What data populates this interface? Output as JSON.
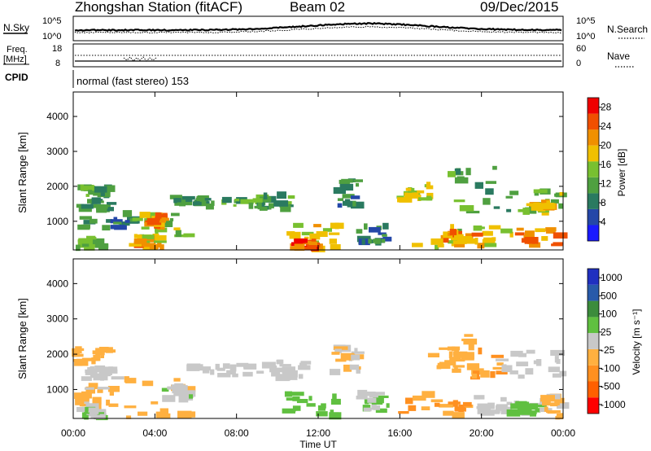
{
  "header": {
    "station": "Zhongshan Station (fitACF)",
    "beam": "Beam 02",
    "date": "09/Dec/2015"
  },
  "top_panels": {
    "nsky_label": "N.Sky",
    "nsky_tick_top": "10^5",
    "nsky_tick_bottom": "10^0",
    "nsearch_label": "N.Search",
    "nsearch_tick_top": "10^5",
    "nsearch_tick_bottom": "10^0",
    "freq_label_1": "Freq.",
    "freq_label_2": "[MHz]",
    "freq_ticks": [
      "18",
      "8"
    ],
    "nave_label": "Nave",
    "nave_ticks": [
      "60",
      "0"
    ],
    "cpid_label": "CPID",
    "cpid_text": "normal (fast stereo) 153"
  },
  "colors": {
    "power": [
      "#1a1aff",
      "#2447a8",
      "#2a7a60",
      "#4fa040",
      "#78c030",
      "#f0c000",
      "#f09000",
      "#f05000",
      "#f00000"
    ],
    "velocity": [
      "#ff0000",
      "#ff6000",
      "#ff9020",
      "#ffb040",
      "#c8c8c8",
      "#60c040",
      "#3c8c3c",
      "#285aaa",
      "#2030c0"
    ]
  },
  "chart_data": [
    {
      "type": "heatmap",
      "name": "power",
      "xlabel": "",
      "ylabel": "Slant Range [km]",
      "x_ticks": [
        "00:00",
        "04:00",
        "08:00",
        "12:00",
        "16:00",
        "20:00",
        "00:00"
      ],
      "y_ticks": [
        1000,
        2000,
        3000,
        4000
      ],
      "xlim_hours": [
        0,
        24
      ],
      "ylim_km": [
        180,
        4700
      ],
      "colorbar": {
        "label": "Power [dB]",
        "ticks": [
          "4",
          "8",
          "12",
          "16",
          "20",
          "24",
          "28"
        ],
        "range": [
          0,
          30
        ]
      },
      "echo_regions": [
        {
          "t0": 0.1,
          "t1": 2.2,
          "r0": 1300,
          "r1": 1600,
          "v": 10
        },
        {
          "t0": 0.1,
          "t1": 1.5,
          "r0": 200,
          "r1": 500,
          "v": 14
        },
        {
          "t0": 0.3,
          "t1": 1.8,
          "r0": 1700,
          "r1": 2000,
          "v": 12
        },
        {
          "t0": 0.5,
          "t1": 3.0,
          "r0": 800,
          "r1": 1100,
          "v": 8
        },
        {
          "t0": 2.5,
          "t1": 5.8,
          "r0": 500,
          "r1": 1300,
          "v": 14
        },
        {
          "t0": 3.0,
          "t1": 4.6,
          "r0": 200,
          "r1": 600,
          "v": 20
        },
        {
          "t0": 3.5,
          "t1": 4.5,
          "r0": 800,
          "r1": 1200,
          "v": 22
        },
        {
          "t0": 5.0,
          "t1": 6.5,
          "r0": 1500,
          "r1": 1700,
          "v": 10
        },
        {
          "t0": 6.5,
          "t1": 9.5,
          "r0": 1400,
          "r1": 1650,
          "v": 12
        },
        {
          "t0": 9.0,
          "t1": 10.8,
          "r0": 1300,
          "r1": 1800,
          "v": 11
        },
        {
          "t0": 10.5,
          "t1": 13.0,
          "r0": 200,
          "r1": 900,
          "v": 18
        },
        {
          "t0": 10.8,
          "t1": 12.0,
          "r0": 200,
          "r1": 450,
          "v": 24
        },
        {
          "t0": 13.0,
          "t1": 14.0,
          "r0": 1400,
          "r1": 2200,
          "v": 9
        },
        {
          "t0": 14.0,
          "t1": 15.5,
          "r0": 400,
          "r1": 900,
          "v": 8
        },
        {
          "t0": 16.0,
          "t1": 17.5,
          "r0": 1600,
          "r1": 2100,
          "v": 16
        },
        {
          "t0": 16.5,
          "t1": 21.5,
          "r0": 250,
          "r1": 900,
          "v": 16
        },
        {
          "t0": 18.0,
          "t1": 20.0,
          "r0": 300,
          "r1": 700,
          "v": 21
        },
        {
          "t0": 18.5,
          "t1": 21.5,
          "r0": 1200,
          "r1": 2600,
          "v": 11
        },
        {
          "t0": 21.5,
          "t1": 24.0,
          "r0": 1200,
          "r1": 1900,
          "v": 14
        },
        {
          "t0": 21.8,
          "t1": 24.0,
          "r0": 300,
          "r1": 800,
          "v": 22
        },
        {
          "t0": 22.5,
          "t1": 23.5,
          "r0": 1350,
          "r1": 1600,
          "v": 19
        }
      ]
    },
    {
      "type": "heatmap",
      "name": "velocity",
      "xlabel": "Time UT",
      "ylabel": "Slant Range [km]",
      "x_ticks": [
        "00:00",
        "04:00",
        "08:00",
        "12:00",
        "16:00",
        "20:00",
        "00:00"
      ],
      "y_ticks": [
        1000,
        2000,
        3000,
        4000
      ],
      "xlim_hours": [
        0,
        24
      ],
      "ylim_km": [
        180,
        4700
      ],
      "colorbar": {
        "label": "Velocity [m s⁻¹]",
        "ticks": [
          "1000",
          "500",
          "100",
          "25",
          "-25",
          "-100",
          "-500",
          "-1000"
        ],
        "range": [
          -1200,
          1200
        ]
      },
      "echo_regions": [
        {
          "t0": 0.1,
          "t1": 2.2,
          "r0": 1300,
          "r1": 1600,
          "v": 0
        },
        {
          "t0": 0.1,
          "t1": 1.8,
          "r0": 1700,
          "r1": 2200,
          "v": -300
        },
        {
          "t0": 0.3,
          "t1": 2.0,
          "r0": 500,
          "r1": 1200,
          "v": -200
        },
        {
          "t0": 0.1,
          "t1": 1.5,
          "r0": 200,
          "r1": 450,
          "v": 80
        },
        {
          "t0": 2.5,
          "t1": 5.8,
          "r0": 200,
          "r1": 1300,
          "v": -250
        },
        {
          "t0": 4.5,
          "t1": 5.8,
          "r0": 700,
          "r1": 1100,
          "v": 90
        },
        {
          "t0": 5.5,
          "t1": 9.5,
          "r0": 1400,
          "r1": 1700,
          "v": 0
        },
        {
          "t0": 9.0,
          "t1": 11.5,
          "r0": 1300,
          "r1": 1800,
          "v": 5
        },
        {
          "t0": 10.5,
          "t1": 13.0,
          "r0": 200,
          "r1": 900,
          "v": 300
        },
        {
          "t0": 12.8,
          "t1": 14.0,
          "r0": 1400,
          "r1": 2200,
          "v": -150
        },
        {
          "t0": 14.0,
          "t1": 15.5,
          "r0": 400,
          "r1": 900,
          "v": 120
        },
        {
          "t0": 16.0,
          "t1": 19.5,
          "r0": 200,
          "r1": 900,
          "v": -400
        },
        {
          "t0": 17.5,
          "t1": 19.0,
          "r0": 1500,
          "r1": 2200,
          "v": -300
        },
        {
          "t0": 19.0,
          "t1": 21.0,
          "r0": 1200,
          "r1": 2600,
          "v": -350
        },
        {
          "t0": 19.5,
          "t1": 21.5,
          "r0": 300,
          "r1": 800,
          "v": 0
        },
        {
          "t0": 21.0,
          "t1": 24.0,
          "r0": 1300,
          "r1": 2100,
          "v": 0
        },
        {
          "t0": 21.5,
          "t1": 23.0,
          "r0": 300,
          "r1": 700,
          "v": 150
        },
        {
          "t0": 23.0,
          "t1": 24.0,
          "r0": 200,
          "r1": 800,
          "v": -200
        }
      ]
    }
  ]
}
